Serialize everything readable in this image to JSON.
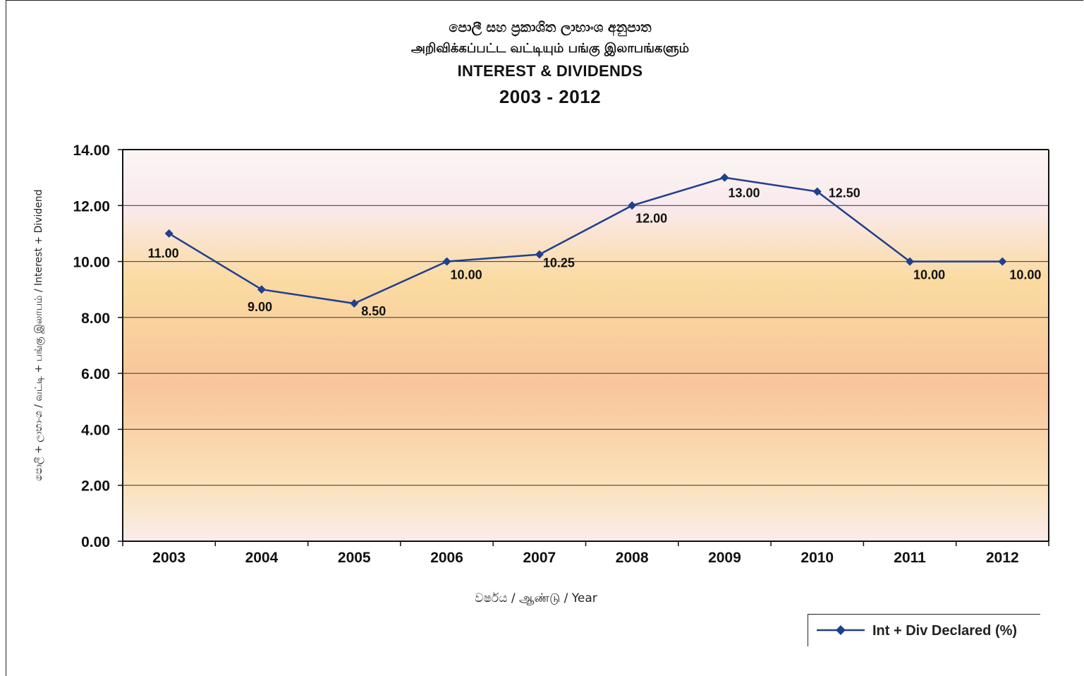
{
  "titles": {
    "line1": "පොලී සහ ප්‍රකාශිත ලාභාංශ අනුපාත",
    "line2": "அறிவிக்கப்பட்ட வட்டியும் பங்கு இலாபங்களும்",
    "line3": "INTEREST & DIVIDENDS",
    "line4": "2003 - 2012"
  },
  "colors": {
    "series": "#1f3f8f",
    "grid": "#333333",
    "background_top": "#fbf6f4",
    "background_pink": "#f9e9ec",
    "background_yellow": "#fbdba2",
    "background_orange": "#f8c59a"
  },
  "chart_data": {
    "type": "line",
    "categories": [
      "2003",
      "2004",
      "2005",
      "2006",
      "2007",
      "2008",
      "2009",
      "2010",
      "2011",
      "2012"
    ],
    "series": [
      {
        "name": "Int + Div Declared (%)",
        "values": [
          11.0,
          9.0,
          8.5,
          10.0,
          10.25,
          12.0,
          13.0,
          12.5,
          10.0,
          10.0
        ],
        "labels": [
          "11.00",
          "9.00",
          "8.50",
          "10.00",
          "10.25",
          "12.00",
          "13.00",
          "12.50",
          "10.00",
          "10.00"
        ],
        "marker": "diamond"
      }
    ],
    "yticks": [
      "0.00",
      "2.00",
      "4.00",
      "6.00",
      "8.00",
      "10.00",
      "12.00",
      "14.00"
    ],
    "ylim": [
      0,
      14
    ],
    "xlabel": "වර්ෂය / ஆண்டு / Year",
    "ylabel": "පොලී + ලාභාංශ / வட்டி + பங்கு இலாபம் / Interest + Dividend",
    "grid": "horizontal",
    "legend": "bottom-right"
  }
}
